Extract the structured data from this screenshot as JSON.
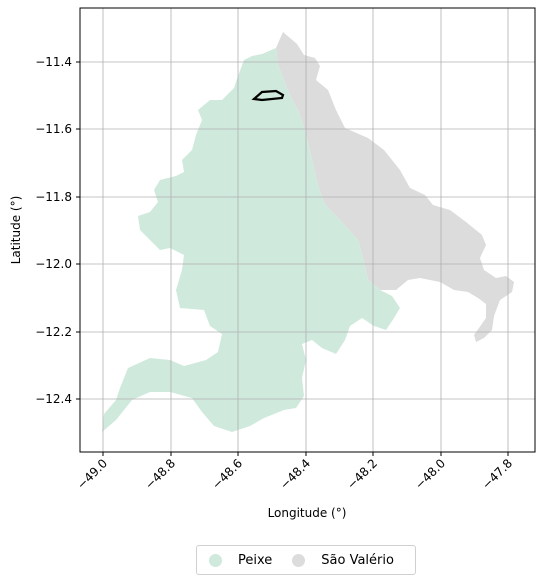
{
  "chart_data": {
    "type": "map",
    "xlabel": "Longitude (°)",
    "ylabel": "Latitude (°)",
    "xlim": [
      -49.07,
      -47.72
    ],
    "ylim": [
      -12.56,
      -11.25
    ],
    "x_ticks": [
      "−49.0",
      "−48.8",
      "−48.6",
      "−48.4",
      "−48.2",
      "−48.0",
      "−47.8"
    ],
    "x_tick_values": [
      -49.0,
      -48.8,
      -48.6,
      -48.4,
      -48.2,
      -48.0,
      -47.8
    ],
    "y_ticks": [
      "−11.4",
      "−11.6",
      "−11.8",
      "−12.0",
      "−12.2",
      "−12.4"
    ],
    "y_tick_values": [
      -11.4,
      -11.6,
      -11.8,
      -12.0,
      -12.2,
      -12.4
    ],
    "grid": true,
    "legend_position": "bottom-center",
    "series": [
      {
        "name": "Peixe",
        "color": "#cfeadd"
      },
      {
        "name": "São Valério",
        "color": "#dcdcdc"
      }
    ],
    "highlight_outline_color": "#000000"
  }
}
